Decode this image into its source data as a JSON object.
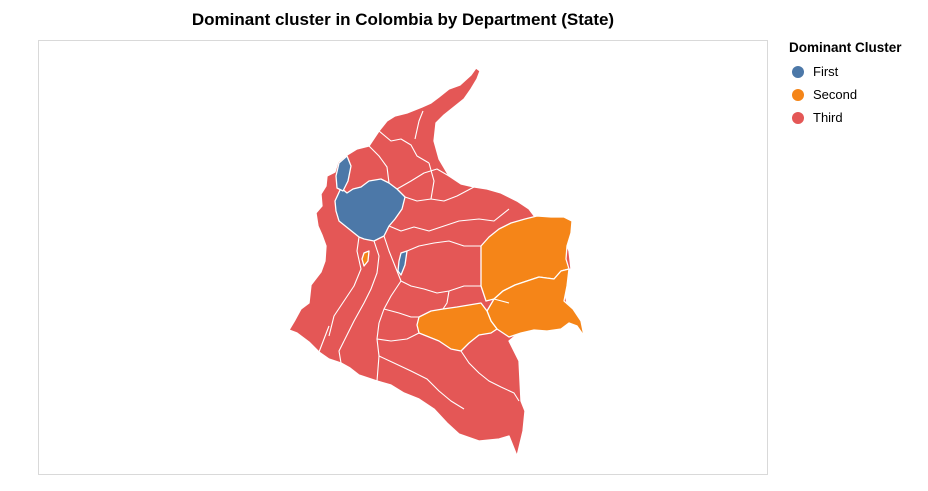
{
  "chart": {
    "title": "Dominant cluster in Colombia by Department (State)",
    "legend_title": "Dominant Cluster"
  },
  "colors": {
    "first": "#4c78a8",
    "second": "#f58518",
    "third": "#e45756"
  },
  "legend": [
    {
      "label": "First",
      "cluster": "first"
    },
    {
      "label": "Second",
      "cluster": "second"
    },
    {
      "label": "Third",
      "cluster": "third"
    }
  ]
}
